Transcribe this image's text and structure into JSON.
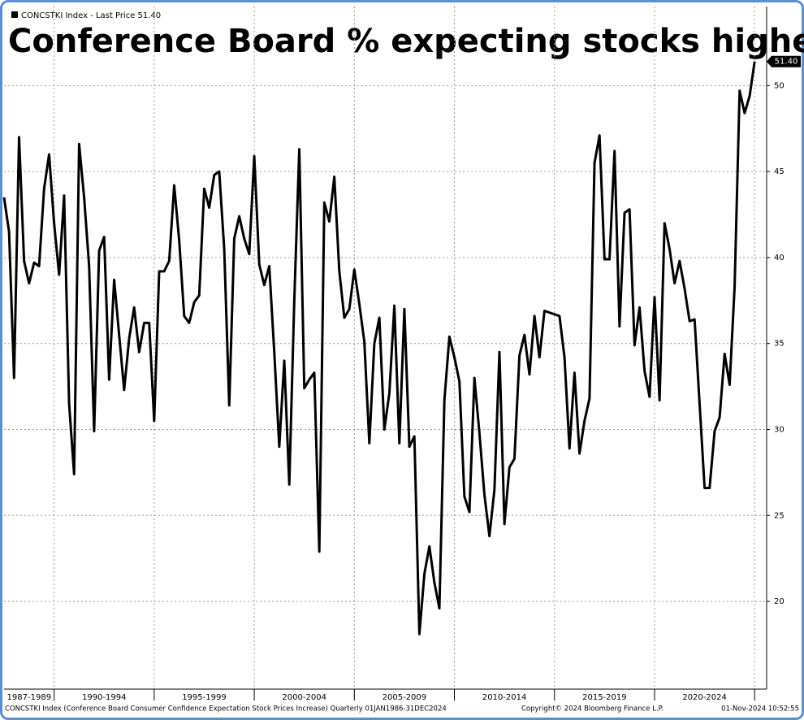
{
  "chart_data": {
    "type": "line",
    "title": "Conference Board % expecting stocks higher",
    "footer": {
      "source": "CONCSTKI Index (Conference Board Consumer Confidence Expectation Stock Prices Increase)  Quarterly 01JAN1986-31DEC2024",
      "copyright": "Copyright© 2024 Bloomberg Finance L.P.",
      "timestamp": "01-Nov-2024 10:52:55"
    },
    "xbands": [
      {
        "label": "1987-1989",
        "start": 1987,
        "end": 1990
      },
      {
        "label": "1990-1994",
        "start": 1990,
        "end": 1995
      },
      {
        "label": "1995-1999",
        "start": 1995,
        "end": 2000
      },
      {
        "label": "2000-2004",
        "start": 2000,
        "end": 2005
      },
      {
        "label": "2005-2009",
        "start": 2005,
        "end": 2010
      },
      {
        "label": "2010-2014",
        "start": 2010,
        "end": 2015
      },
      {
        "label": "2015-2019",
        "start": 2015,
        "end": 2020
      },
      {
        "label": "2020-2024",
        "start": 2020,
        "end": 2025
      }
    ],
    "xlim": [
      1987.5,
      2025.6
    ],
    "ylim": [
      14.9,
      54.6
    ],
    "yticks": [
      20,
      25,
      30,
      35,
      40,
      45,
      50
    ],
    "grid": true,
    "x": [
      1987.5,
      1987.75,
      1988,
      1988.25,
      1988.5,
      1988.75,
      1989,
      1989.25,
      1989.5,
      1989.75,
      1990,
      1990.25,
      1990.5,
      1990.75,
      1991,
      1991.25,
      1991.5,
      1991.75,
      1992,
      1992.25,
      1992.5,
      1992.75,
      1993,
      1993.25,
      1993.5,
      1993.75,
      1994,
      1994.25,
      1994.5,
      1994.75,
      1995,
      1995.25,
      1995.5,
      1995.75,
      1996,
      1996.25,
      1996.5,
      1996.75,
      1997,
      1997.25,
      1997.5,
      1997.75,
      1998,
      1998.25,
      1998.5,
      1998.75,
      1999,
      1999.25,
      1999.5,
      1999.75,
      2000,
      2000.25,
      2000.5,
      2000.75,
      2001,
      2001.25,
      2001.5,
      2001.75,
      2002,
      2002.25,
      2002.5,
      2002.75,
      2003,
      2003.25,
      2003.5,
      2003.75,
      2004,
      2004.25,
      2004.5,
      2004.75,
      2005,
      2005.25,
      2005.5,
      2005.75,
      2006,
      2006.25,
      2006.5,
      2006.75,
      2007,
      2007.25,
      2007.5,
      2007.75,
      2008,
      2008.25,
      2008.5,
      2008.75,
      2009,
      2009.25,
      2009.5,
      2009.75,
      2010,
      2010.25,
      2010.5,
      2010.75,
      2011,
      2011.25,
      2011.5,
      2011.75,
      2012,
      2012.25,
      2012.5,
      2012.75,
      2013,
      2013.25,
      2013.5,
      2013.75,
      2014,
      2014.25,
      2014.5,
      2014.75,
      2015,
      2015.25,
      2015.5,
      2015.75,
      2016,
      2016.25,
      2016.5,
      2016.75,
      2017,
      2017.25,
      2017.5,
      2017.75,
      2018,
      2018.25,
      2018.5,
      2018.75,
      2019,
      2019.25,
      2019.5,
      2019.75,
      2020,
      2020.25,
      2020.5,
      2020.75,
      2021,
      2021.25,
      2021.5,
      2021.75,
      2022,
      2022.25,
      2022.5,
      2022.75,
      2023,
      2023.25,
      2023.5,
      2023.75,
      2024,
      2024.25,
      2024.5,
      2024.75,
      2025
    ],
    "series": [
      {
        "name": "CONCSTKI Index - Last Price 51.40",
        "color": "#000000",
        "last_label": "51.40",
        "values": [
          43.5,
          41.5,
          33,
          47,
          39.8,
          38.5,
          39.7,
          39.5,
          44,
          46,
          42,
          39,
          43.6,
          31.5,
          27.4,
          46.6,
          43.5,
          39.5,
          29.9,
          40.4,
          41.2,
          32.9,
          38.7,
          35.5,
          32.3,
          35.3,
          37.1,
          34.5,
          36.2,
          36.2,
          30.5,
          39.2,
          39.2,
          39.8,
          44.2,
          41,
          36.6,
          36.2,
          37.4,
          37.8,
          44,
          42.9,
          44.8,
          45,
          40.5,
          31.4,
          41.1,
          42.4,
          41.1,
          40.2,
          45.9,
          39.6,
          38.4,
          39.5,
          34.5,
          29,
          34,
          26.8,
          37.5,
          46.3,
          32.4,
          32.9,
          33.3,
          22.9,
          43.2,
          42.1,
          44.7,
          39.2,
          36.5,
          37,
          39.3,
          37.3,
          35.1,
          29.2,
          35,
          36.5,
          30,
          32.1,
          37.2,
          29.2,
          37,
          29,
          29.6,
          18.1,
          21.6,
          23.2,
          21.1,
          19.6,
          31.7,
          35.4,
          34.2,
          32.8,
          26.1,
          25.2,
          33,
          29.8,
          26.2,
          23.8,
          26.5,
          34.5,
          24.5,
          27.8,
          28.3,
          34.3,
          35.5,
          33.2,
          36.6,
          34.2,
          36.9,
          36.8,
          36.7,
          36.6,
          34.2,
          28.9,
          33.3,
          28.6,
          30.5,
          31.8,
          45.5,
          47.1,
          39.9,
          39.9,
          46.2,
          36,
          42.6,
          42.8,
          34.9,
          37.1,
          33.4,
          31.9,
          37.7,
          31.7,
          42,
          40.5,
          38.5,
          39.8,
          38.2,
          36.3,
          36.4,
          31.5,
          26.6,
          26.6,
          29.9,
          30.7,
          34.4,
          32.6,
          38.3,
          49.7,
          48.4,
          49.4,
          51.4
        ]
      }
    ]
  }
}
